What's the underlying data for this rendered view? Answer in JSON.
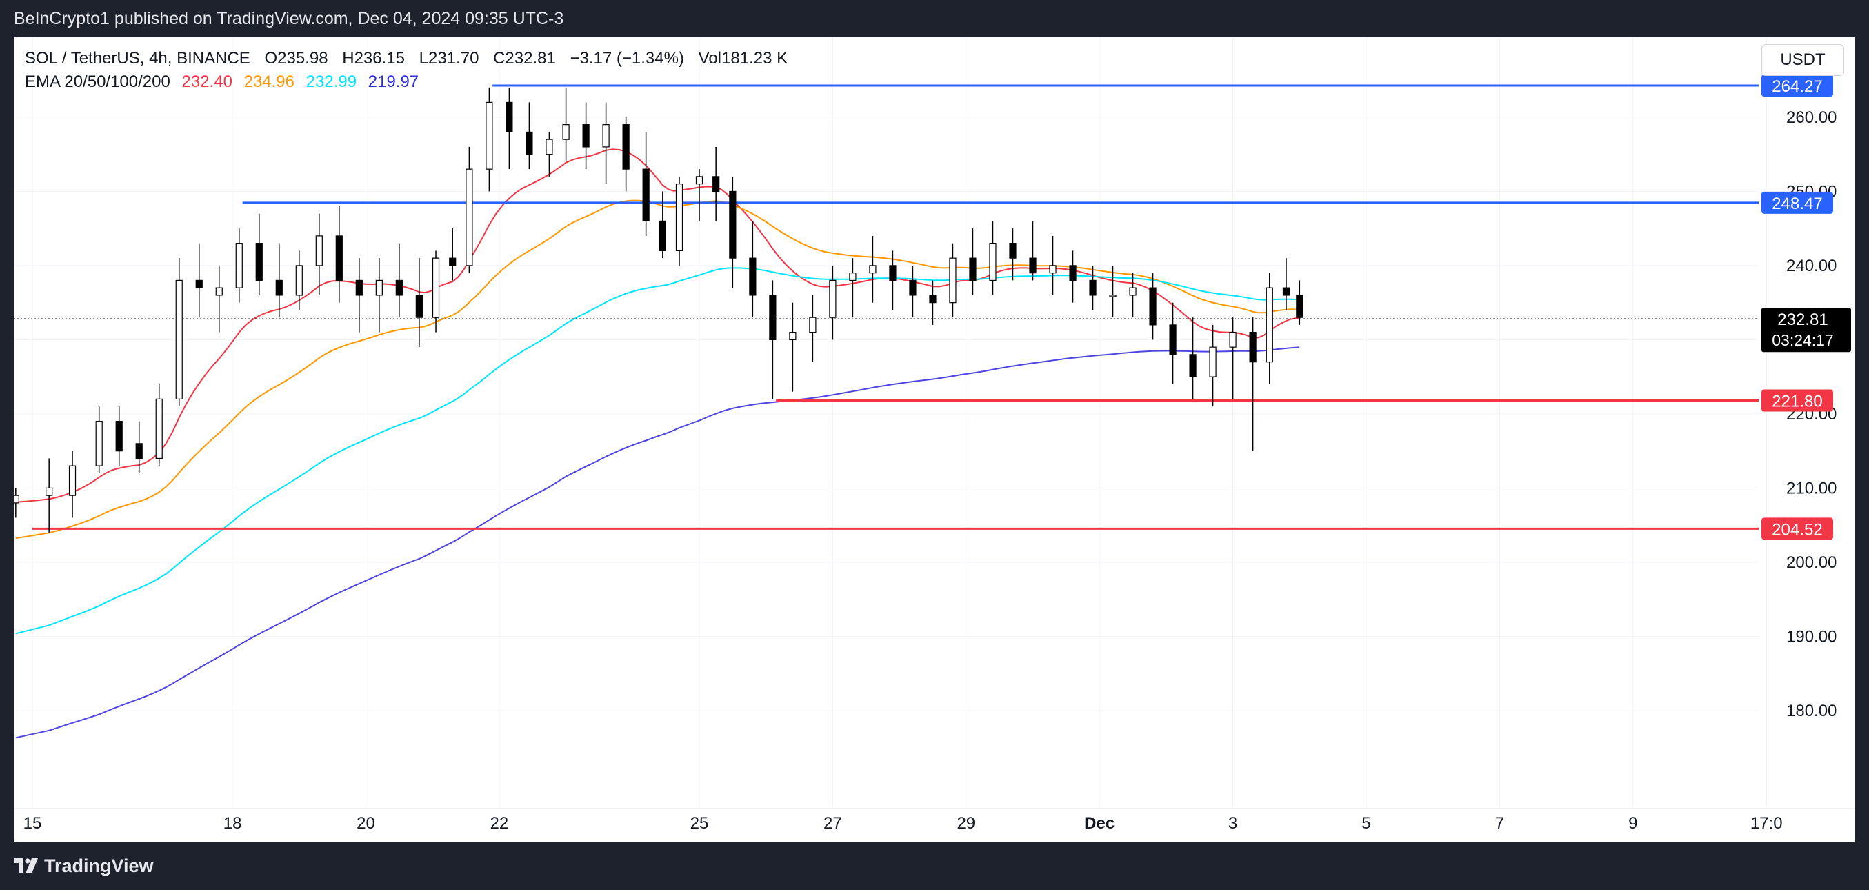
{
  "header": {
    "published_text": "BeInCrypto1 published on TradingView.com, Dec 04, 2024 09:35 UTC-3"
  },
  "legend": {
    "symbol": "SOL / TetherUS, 4h, BINANCE",
    "open": "O235.98",
    "high": "H236.15",
    "low": "L231.70",
    "close": "C232.81",
    "change": "−3.17 (−1.34%)",
    "volume": "Vol181.23 K",
    "ema_label": "EMA 20/50/100/200",
    "ema20": "232.40",
    "ema50": "234.96",
    "ema100": "232.99",
    "ema200": "219.97"
  },
  "currency_button": "USDT",
  "footer": {
    "brand": "TradingView"
  },
  "colors": {
    "up_candle": "#ffffff",
    "down_candle": "#000000",
    "wick": "#000000",
    "ema20": "#f23645",
    "ema50": "#ff9800",
    "ema100": "#00e5ff",
    "ema200": "#4f45e0",
    "resistance": "#2962ff",
    "support": "#f23645",
    "price_label_bg": "#000000"
  },
  "chart_data": {
    "type": "candlestick",
    "title": "SOL / TetherUS, 4h, BINANCE",
    "ylim": [
      175,
      270
    ],
    "y_ticks": [
      "180.00",
      "190.00",
      "200.00",
      "210.00",
      "220.00",
      "230.00",
      "240.00",
      "250.00",
      "260.00"
    ],
    "x_ticks": [
      "15",
      "18",
      "20",
      "22",
      "25",
      "27",
      "29",
      "Dec",
      "3",
      "5",
      "7",
      "9",
      "17:0"
    ],
    "x_tick_days": [
      15,
      18,
      20,
      22,
      25,
      27,
      29,
      31,
      33,
      35,
      37,
      39,
      41
    ],
    "current_price": {
      "value": 232.81,
      "label": "232.81",
      "countdown": "03:24:17"
    },
    "levels": [
      {
        "value": 264.27,
        "label": "264.27",
        "kind": "resistance",
        "start_day": 21.9
      },
      {
        "value": 248.47,
        "label": "248.47",
        "kind": "resistance",
        "start_day": 18.15
      },
      {
        "value": 221.8,
        "label": "221.80",
        "kind": "support",
        "start_day": 26.15
      },
      {
        "value": 204.52,
        "label": "204.52",
        "kind": "support",
        "start_day": 15.0
      }
    ],
    "ohlc_anchors": [
      [
        14.75,
        208,
        210,
        206,
        209
      ],
      [
        15.25,
        209,
        214,
        204,
        210
      ],
      [
        15.6,
        209,
        215,
        206,
        213
      ],
      [
        16.0,
        213,
        221,
        212,
        219
      ],
      [
        16.3,
        219,
        221,
        213,
        215
      ],
      [
        16.6,
        216,
        219,
        212,
        214
      ],
      [
        16.9,
        214,
        224,
        213,
        222
      ],
      [
        17.2,
        222,
        241,
        221,
        238
      ],
      [
        17.5,
        238,
        243,
        233,
        237
      ],
      [
        17.8,
        236,
        240,
        231,
        237
      ],
      [
        18.1,
        237,
        245,
        235,
        243
      ],
      [
        18.4,
        243,
        247,
        236,
        238
      ],
      [
        18.7,
        238,
        243,
        233,
        236
      ],
      [
        19.0,
        236,
        242,
        234,
        240
      ],
      [
        19.3,
        240,
        247,
        236,
        244
      ],
      [
        19.6,
        244,
        248,
        235,
        238
      ],
      [
        19.9,
        238,
        241,
        231,
        236
      ],
      [
        20.2,
        236,
        241,
        231,
        238
      ],
      [
        20.5,
        238,
        243,
        233,
        236
      ],
      [
        20.8,
        236,
        241,
        229,
        233
      ],
      [
        21.05,
        233,
        242,
        231,
        241
      ],
      [
        21.3,
        241,
        245,
        238,
        240
      ],
      [
        21.55,
        240,
        256,
        239,
        253
      ],
      [
        21.85,
        253,
        264,
        250,
        262
      ],
      [
        22.15,
        262,
        264,
        253,
        258
      ],
      [
        22.45,
        258,
        262,
        253,
        255
      ],
      [
        22.75,
        255,
        258,
        252,
        257
      ],
      [
        23.0,
        257,
        264,
        254,
        259
      ],
      [
        23.3,
        259,
        262,
        253,
        256
      ],
      [
        23.6,
        256,
        262,
        251,
        259
      ],
      [
        23.9,
        259,
        260,
        250,
        253
      ],
      [
        24.2,
        253,
        258,
        244,
        246
      ],
      [
        24.45,
        246,
        250,
        241,
        242
      ],
      [
        24.7,
        242,
        252,
        240,
        251
      ],
      [
        25.0,
        251,
        253,
        246,
        252
      ],
      [
        25.25,
        252,
        256,
        246,
        250
      ],
      [
        25.5,
        250,
        252,
        237,
        241
      ],
      [
        25.8,
        241,
        246,
        233,
        236
      ],
      [
        26.1,
        236,
        238,
        222,
        230
      ],
      [
        26.4,
        230,
        235,
        223,
        231
      ],
      [
        26.7,
        231,
        236,
        227,
        233
      ],
      [
        27.0,
        233,
        240,
        230,
        238
      ],
      [
        27.3,
        238,
        241,
        233,
        239
      ],
      [
        27.6,
        239,
        244,
        235,
        240
      ],
      [
        27.9,
        240,
        242,
        234,
        238
      ],
      [
        28.2,
        238,
        240,
        233,
        236
      ],
      [
        28.5,
        236,
        238,
        232,
        235
      ],
      [
        28.8,
        235,
        243,
        233,
        241
      ],
      [
        29.1,
        241,
        245,
        236,
        238
      ],
      [
        29.4,
        238,
        246,
        236,
        243
      ],
      [
        29.7,
        243,
        245,
        238,
        241
      ],
      [
        30.0,
        241,
        246,
        238,
        239
      ],
      [
        30.3,
        239,
        244,
        236,
        240
      ],
      [
        30.6,
        240,
        242,
        235,
        238
      ],
      [
        30.9,
        238,
        240,
        234,
        236
      ],
      [
        31.2,
        236,
        240,
        233,
        236
      ],
      [
        31.5,
        236,
        239,
        233,
        237
      ],
      [
        31.8,
        237,
        239,
        230,
        232
      ],
      [
        32.1,
        232,
        235,
        224,
        228
      ],
      [
        32.4,
        228,
        233,
        222,
        225
      ],
      [
        32.7,
        225,
        232,
        221,
        229
      ],
      [
        33.0,
        229,
        233,
        222,
        231
      ],
      [
        33.3,
        231,
        233,
        215,
        227
      ],
      [
        33.55,
        227,
        239,
        224,
        237
      ],
      [
        33.8,
        237,
        241,
        234,
        236
      ],
      [
        34.0,
        236,
        238,
        232,
        233
      ]
    ]
  }
}
